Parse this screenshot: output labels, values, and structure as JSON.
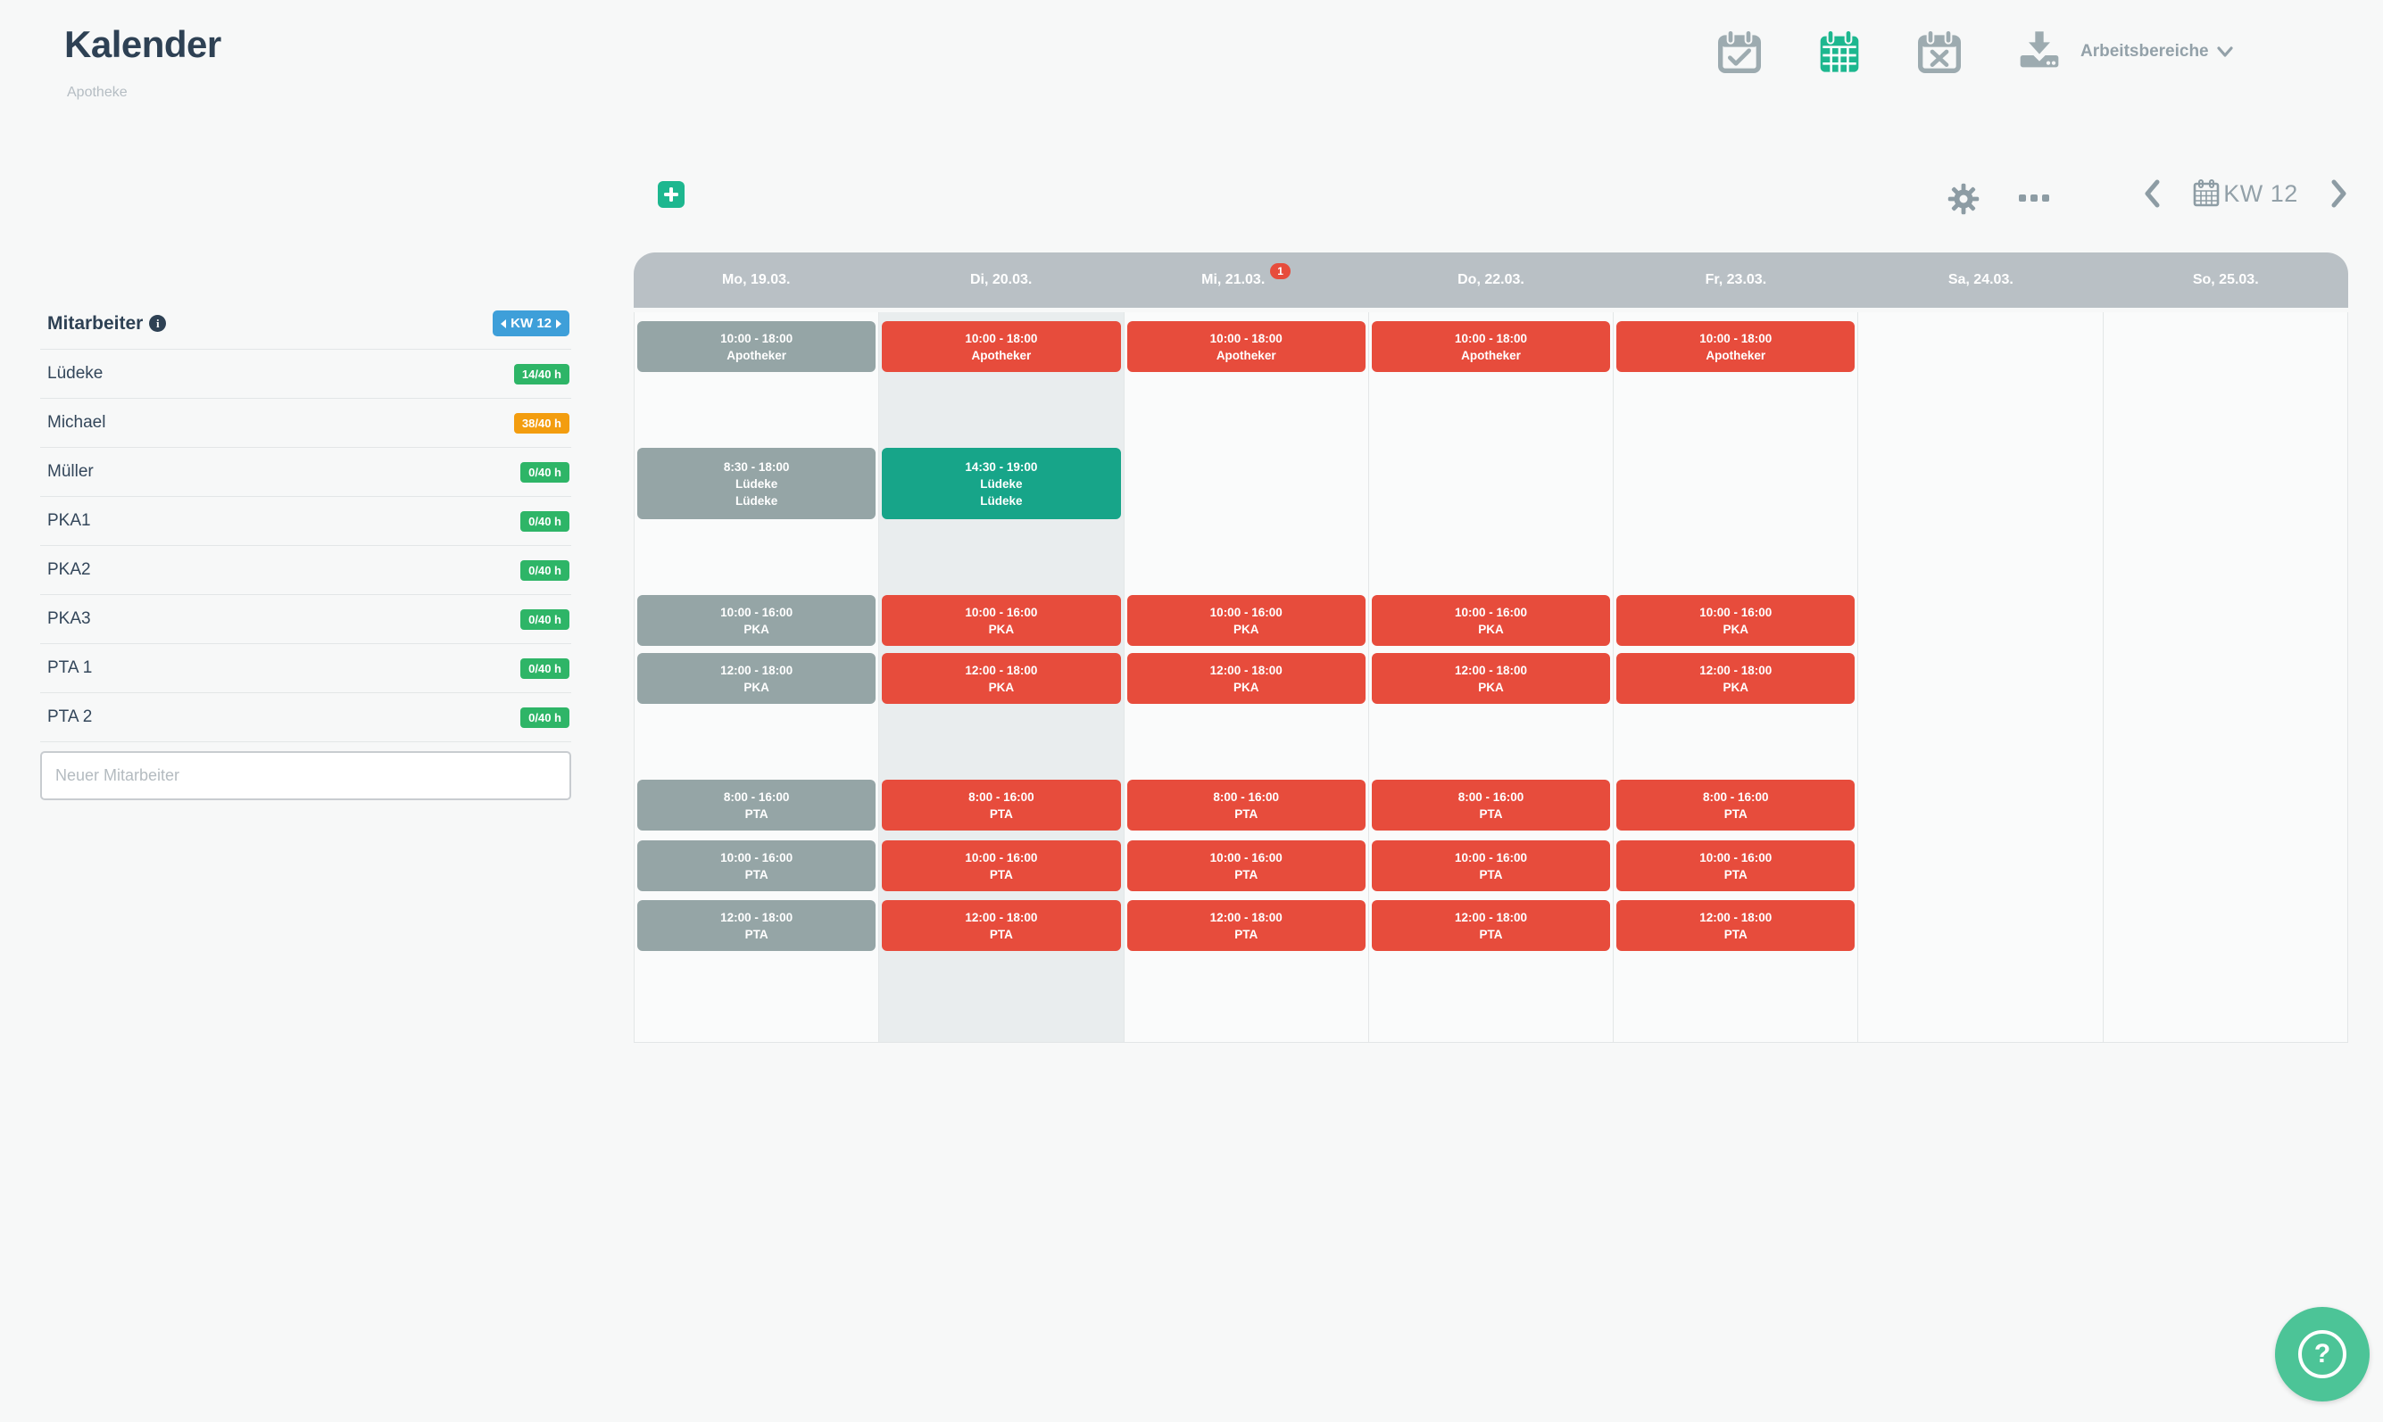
{
  "app": {
    "title": "Kalender",
    "subtitle": "Apotheke"
  },
  "topnav": {
    "workspaces_label": "Arbeitsbereiche",
    "icons": [
      {
        "name": "calendar-check-icon",
        "active": false
      },
      {
        "name": "calendar-grid-icon",
        "active": true
      },
      {
        "name": "calendar-x-icon",
        "active": false
      },
      {
        "name": "download-icon",
        "active": false
      }
    ]
  },
  "toolbar": {
    "week_label": "KW 12"
  },
  "sidebar": {
    "header": "Mitarbeiter",
    "week_badge": "KW 12",
    "new_employee_placeholder": "Neuer Mitarbeiter",
    "employees": [
      {
        "name": "Lüdeke",
        "hours": "14/40 h",
        "status": "green"
      },
      {
        "name": "Michael",
        "hours": "38/40 h",
        "status": "orange"
      },
      {
        "name": "Müller",
        "hours": "0/40 h",
        "status": "green"
      },
      {
        "name": "PKA1",
        "hours": "0/40 h",
        "status": "green"
      },
      {
        "name": "PKA2",
        "hours": "0/40 h",
        "status": "green"
      },
      {
        "name": "PKA3",
        "hours": "0/40 h",
        "status": "green"
      },
      {
        "name": "PTA 1",
        "hours": "0/40 h",
        "status": "green"
      },
      {
        "name": "PTA 2",
        "hours": "0/40 h",
        "status": "green"
      }
    ]
  },
  "calendar": {
    "days": [
      {
        "label": "Mo, 19.03."
      },
      {
        "label": "Di, 20.03.",
        "highlight": true
      },
      {
        "label": "Mi, 21.03.",
        "badge": "1"
      },
      {
        "label": "Do, 22.03."
      },
      {
        "label": "Fr, 23.03."
      },
      {
        "label": "Sa, 24.03."
      },
      {
        "label": "So, 25.03."
      }
    ],
    "rows": [
      {
        "gap": 10,
        "height": 57,
        "cells": [
          {
            "time": "10:00 - 18:00",
            "lines": [
              "Apotheker"
            ],
            "color": "gray"
          },
          {
            "time": "10:00 - 18:00",
            "lines": [
              "Apotheker"
            ],
            "color": "red"
          },
          {
            "time": "10:00 - 18:00",
            "lines": [
              "Apotheker"
            ],
            "color": "red"
          },
          {
            "time": "10:00 - 18:00",
            "lines": [
              "Apotheker"
            ],
            "color": "red"
          },
          {
            "time": "10:00 - 18:00",
            "lines": [
              "Apotheker"
            ],
            "color": "red"
          },
          null,
          null
        ]
      },
      {
        "gap": 85,
        "height": 80,
        "cells": [
          {
            "time": "8:30 - 18:00",
            "lines": [
              "Lüdeke",
              "Lüdeke"
            ],
            "color": "gray"
          },
          {
            "time": "14:30 - 19:00",
            "lines": [
              "Lüdeke",
              "Lüdeke"
            ],
            "color": "teal"
          },
          null,
          null,
          null,
          null,
          null
        ]
      },
      {
        "gap": 85,
        "height": 57,
        "cells": [
          {
            "time": "10:00 - 16:00",
            "lines": [
              "PKA"
            ],
            "color": "gray"
          },
          {
            "time": "10:00 - 16:00",
            "lines": [
              "PKA"
            ],
            "color": "red"
          },
          {
            "time": "10:00 - 16:00",
            "lines": [
              "PKA"
            ],
            "color": "red"
          },
          {
            "time": "10:00 - 16:00",
            "lines": [
              "PKA"
            ],
            "color": "red"
          },
          {
            "time": "10:00 - 16:00",
            "lines": [
              "PKA"
            ],
            "color": "red"
          },
          null,
          null
        ]
      },
      {
        "gap": 8,
        "height": 57,
        "cells": [
          {
            "time": "12:00 - 18:00",
            "lines": [
              "PKA"
            ],
            "color": "gray"
          },
          {
            "time": "12:00 - 18:00",
            "lines": [
              "PKA"
            ],
            "color": "red"
          },
          {
            "time": "12:00 - 18:00",
            "lines": [
              "PKA"
            ],
            "color": "red"
          },
          {
            "time": "12:00 - 18:00",
            "lines": [
              "PKA"
            ],
            "color": "red"
          },
          {
            "time": "12:00 - 18:00",
            "lines": [
              "PKA"
            ],
            "color": "red"
          },
          null,
          null
        ]
      },
      {
        "gap": 85,
        "height": 57,
        "cells": [
          {
            "time": "8:00 - 16:00",
            "lines": [
              "PTA"
            ],
            "color": "gray"
          },
          {
            "time": "8:00 - 16:00",
            "lines": [
              "PTA"
            ],
            "color": "red"
          },
          {
            "time": "8:00 - 16:00",
            "lines": [
              "PTA"
            ],
            "color": "red"
          },
          {
            "time": "8:00 - 16:00",
            "lines": [
              "PTA"
            ],
            "color": "red"
          },
          {
            "time": "8:00 - 16:00",
            "lines": [
              "PTA"
            ],
            "color": "red"
          },
          null,
          null
        ]
      },
      {
        "gap": 11,
        "height": 57,
        "cells": [
          {
            "time": "10:00 - 16:00",
            "lines": [
              "PTA"
            ],
            "color": "gray"
          },
          {
            "time": "10:00 - 16:00",
            "lines": [
              "PTA"
            ],
            "color": "red"
          },
          {
            "time": "10:00 - 16:00",
            "lines": [
              "PTA"
            ],
            "color": "red"
          },
          {
            "time": "10:00 - 16:00",
            "lines": [
              "PTA"
            ],
            "color": "red"
          },
          {
            "time": "10:00 - 16:00",
            "lines": [
              "PTA"
            ],
            "color": "red"
          },
          null,
          null
        ]
      },
      {
        "gap": 10,
        "height": 57,
        "cells": [
          {
            "time": "12:00 - 18:00",
            "lines": [
              "PTA"
            ],
            "color": "gray"
          },
          {
            "time": "12:00 - 18:00",
            "lines": [
              "PTA"
            ],
            "color": "red"
          },
          {
            "time": "12:00 - 18:00",
            "lines": [
              "PTA"
            ],
            "color": "red"
          },
          {
            "time": "12:00 - 18:00",
            "lines": [
              "PTA"
            ],
            "color": "red"
          },
          {
            "time": "12:00 - 18:00",
            "lines": [
              "PTA"
            ],
            "color": "red"
          },
          null,
          null
        ]
      }
    ]
  },
  "help": {
    "label": "?"
  },
  "colors": {
    "accent_teal": "#1db78f",
    "shift_gray": "#95a5a6",
    "shift_red": "#e74c3c",
    "shift_teal": "#17a589",
    "badge_green": "#2eb567",
    "badge_orange": "#f39d0f",
    "badge_blue": "#3e9fd9",
    "header_gray": "#b9c0c5",
    "notification_red": "#e74c3c"
  }
}
